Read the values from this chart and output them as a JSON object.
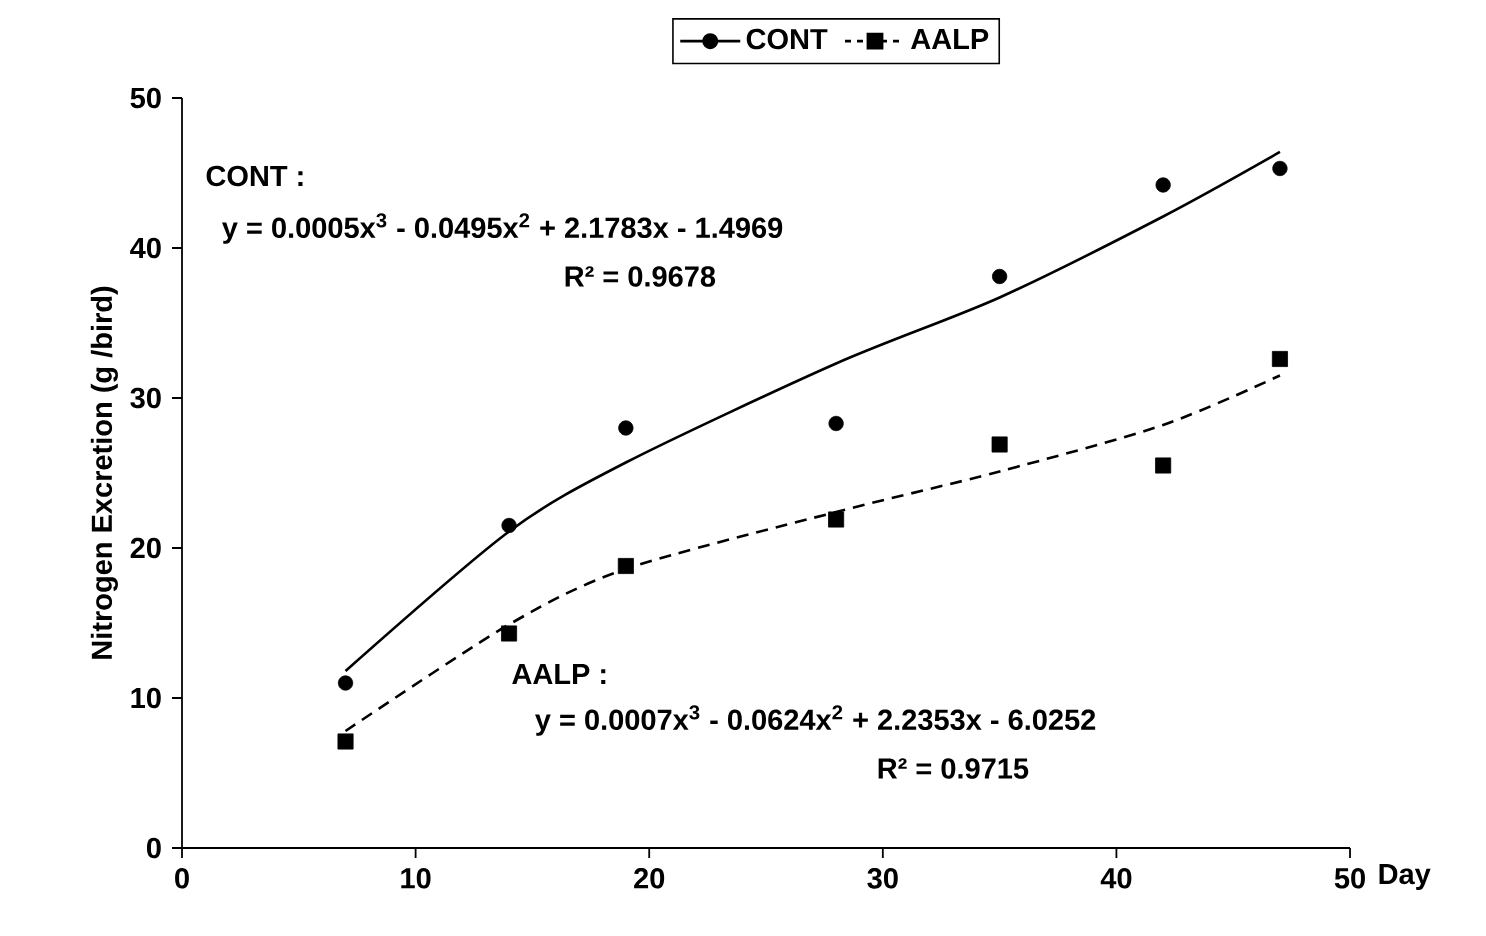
{
  "chart_data": {
    "type": "scatter",
    "xlabel": "Day",
    "ylabel": "Nitrogen Excretion (g /bird)",
    "x": [
      7,
      14,
      19,
      28,
      35,
      42,
      47
    ],
    "series": [
      {
        "name": "CONT",
        "color": "#000000",
        "marker": "circle",
        "line_style": "solid",
        "values": [
          11.0,
          21.5,
          28.0,
          28.3,
          38.1,
          44.2,
          45.3
        ]
      },
      {
        "name": "AALP",
        "color": "#000000",
        "marker": "square",
        "line_style": "dashed",
        "values": [
          7.1,
          14.3,
          18.8,
          21.9,
          26.9,
          25.5,
          32.6
        ]
      },
      {
        "type": "line",
        "color": "#000000",
        "line_style": "solid",
        "marker": "none",
        "x": [
          7,
          14,
          19,
          28,
          35,
          42,
          47
        ],
        "values": [
          11.8,
          21.1,
          25.7,
          32.3,
          36.7,
          42.1,
          46.4
        ]
      },
      {
        "type": "line",
        "color": "#000000",
        "line_style": "dashed",
        "marker": "none",
        "x": [
          7,
          14,
          19,
          28,
          35,
          42,
          47
        ],
        "values": [
          7.8,
          14.9,
          18.6,
          22.4,
          25.1,
          28.2,
          31.5
        ]
      }
    ],
    "xlim": [
      0,
      50
    ],
    "ylim": [
      0,
      50
    ],
    "xticks": [
      0,
      10,
      20,
      30,
      40,
      50
    ],
    "yticks": [
      0,
      10,
      20,
      30,
      40,
      50
    ],
    "grid": false,
    "legend": "top",
    "annotations": [
      "CONT :",
      "y = 0.0005x$^{3}$ - 0.0495x$^{2}$ + 2.1783x - 1.4969",
      "R² = 0.9678",
      "AALP :",
      "y = 0.0007x$^{3}$ - 0.0624x$^{2}$ + 2.2353x - 6.0252",
      "R² = 0.9715"
    ]
  }
}
